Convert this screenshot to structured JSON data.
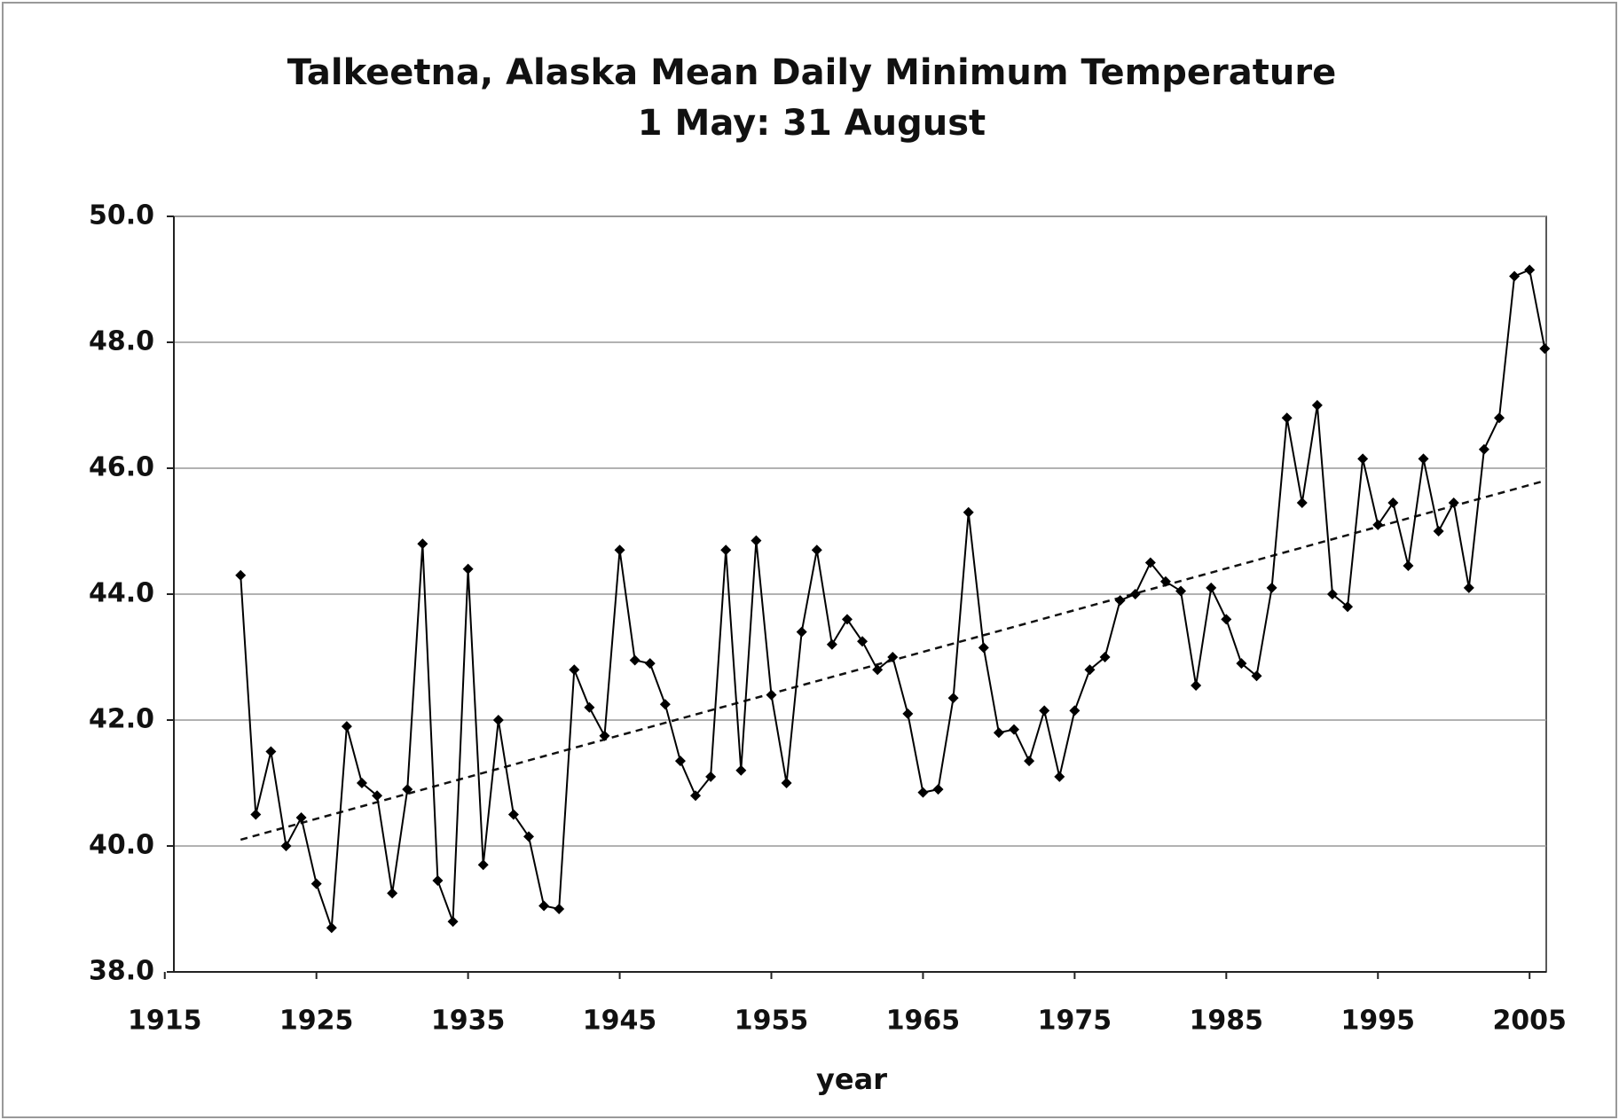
{
  "chart_data": {
    "type": "line",
    "title": "Talkeetna, Alaska Mean Daily Minimum Temperature",
    "subtitle": "1 May: 31 August",
    "x_label": "year",
    "x": [
      1920,
      1921,
      1922,
      1923,
      1924,
      1925,
      1926,
      1927,
      1928,
      1929,
      1930,
      1931,
      1932,
      1933,
      1934,
      1935,
      1936,
      1937,
      1938,
      1939,
      1940,
      1941,
      1942,
      1943,
      1944,
      1945,
      1946,
      1947,
      1948,
      1949,
      1950,
      1951,
      1952,
      1953,
      1954,
      1955,
      1956,
      1957,
      1958,
      1959,
      1960,
      1961,
      1962,
      1963,
      1964,
      1965,
      1966,
      1967,
      1968,
      1969,
      1970,
      1971,
      1972,
      1973,
      1974,
      1975,
      1976,
      1977,
      1978,
      1979,
      1980,
      1981,
      1982,
      1983,
      1984,
      1985,
      1986,
      1987,
      1988,
      1989,
      1990,
      1991,
      1992,
      1993,
      1994,
      1995,
      1996,
      1997,
      1998,
      1999,
      2000,
      2001,
      2002,
      2003,
      2004,
      2005,
      2006
    ],
    "series": [
      {
        "color": "#000000",
        "values": [
          44.3,
          40.5,
          41.5,
          40.0,
          40.45,
          39.4,
          38.7,
          41.9,
          41.0,
          40.8,
          39.25,
          40.9,
          44.8,
          39.45,
          38.8,
          44.4,
          39.7,
          42.0,
          40.5,
          40.15,
          39.05,
          39.0,
          42.8,
          42.2,
          41.75,
          44.7,
          42.95,
          42.9,
          42.25,
          41.35,
          40.8,
          41.1,
          44.7,
          41.2,
          44.85,
          42.4,
          41.0,
          43.4,
          44.7,
          43.2,
          43.6,
          43.25,
          42.8,
          43.0,
          42.1,
          40.85,
          40.9,
          42.35,
          45.3,
          43.15,
          41.8,
          41.85,
          41.35,
          42.15,
          41.1,
          42.15,
          42.8,
          43.0,
          43.9,
          44.0,
          44.5,
          44.2,
          44.05,
          42.55,
          44.1,
          43.6,
          42.9,
          42.7,
          44.1,
          46.8,
          45.45,
          47.0,
          44.0,
          43.8,
          46.15,
          45.1,
          45.45,
          44.45,
          46.15,
          45.0,
          45.45,
          44.1,
          46.3,
          46.8,
          49.05,
          49.15,
          47.9
        ]
      }
    ],
    "trend": {
      "x": [
        1920,
        2006
      ],
      "values": [
        40.1,
        45.8
      ]
    },
    "xlim": [
      1915.6,
      2006.1
    ],
    "xticks": [
      1915,
      1925,
      1935,
      1945,
      1955,
      1965,
      1975,
      1985,
      1995,
      2005
    ],
    "ylim": [
      38,
      50
    ],
    "yticks": [
      {
        "value": 38,
        "label": "38.0"
      },
      {
        "value": 40,
        "label": "40.0"
      },
      {
        "value": 42,
        "label": "42.0"
      },
      {
        "value": 44,
        "label": "44.0"
      },
      {
        "value": 46,
        "label": "46.0"
      },
      {
        "value": 48,
        "label": "48.0"
      },
      {
        "value": 50,
        "label": "50.0"
      }
    ],
    "grid": true
  }
}
